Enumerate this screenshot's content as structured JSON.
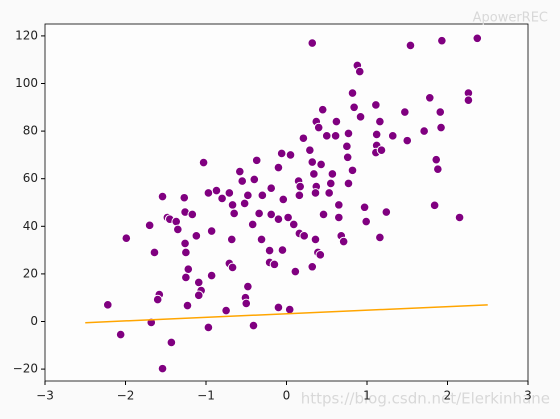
{
  "chart_data": {
    "type": "scatter",
    "color": "#800080",
    "x": [
      0.32,
      1.54,
      1.93,
      2.37,
      0.88,
      0.91,
      2.26,
      2.26,
      1.78,
      0.84,
      0.45,
      0.82,
      1.11,
      1.47,
      1.91,
      1.92,
      0.37,
      0.4,
      0.62,
      1.16,
      1.12,
      0.92,
      0.77,
      1.71,
      1.5,
      1.32,
      0.61,
      0.21,
      0.29,
      0.05,
      0.5,
      -0.06,
      -0.37,
      -1.03,
      0.75,
      1.12,
      1.11,
      1.18,
      1.86,
      1.88,
      0.76,
      0.32,
      0.43,
      -0.1,
      -0.58,
      0.82,
      0.77,
      0.34,
      0.15,
      -0.55,
      -0.87,
      -0.97,
      -1.27,
      -1.54,
      -0.4,
      -0.19,
      0.17,
      0.37,
      0.36,
      0.53,
      -0.71,
      -0.8,
      -0.67,
      -0.52,
      -0.48,
      -0.3,
      0.16,
      -0.04,
      -1.26,
      -1.48,
      -1.17,
      -0.65,
      -0.34,
      -0.19,
      0.02,
      -0.1,
      0.09,
      0.46,
      0.65,
      0.65,
      0.97,
      0.99,
      1.24,
      1.84,
      2.15,
      -1.45,
      -1.37,
      -1.35,
      -1.7,
      -0.93,
      -1.12,
      -0.42,
      -0.31,
      0.16,
      0.22,
      0.36,
      0.68,
      0.71,
      1.16,
      -1.99,
      -1.64,
      -1.26,
      -1.25,
      -0.68,
      -0.21,
      -0.05,
      0.39,
      0.42,
      -0.71,
      -0.67,
      -0.21,
      -0.15,
      0.32,
      -1.22,
      -1.09,
      -0.93,
      -1.25,
      0.11,
      -0.48,
      -0.51,
      -0.5,
      -1.06,
      -1.09,
      -1.58,
      -1.6,
      -1.23,
      -2.22,
      -0.75,
      -0.1,
      0.04,
      -1.68,
      -0.97,
      -0.41,
      -2.06,
      -1.43,
      -1.54,
      0.55,
      0.57
    ],
    "values": [
      117,
      116,
      118,
      119,
      107.6,
      105,
      96,
      93,
      94,
      90,
      89,
      96,
      91,
      88,
      88,
      81.5,
      84,
      81.5,
      84,
      84,
      78.6,
      86,
      79,
      80,
      76,
      78,
      78,
      77,
      72,
      70,
      78,
      70.6,
      67.7,
      66.8,
      73.6,
      74,
      71,
      72,
      68,
      64,
      69,
      67,
      66,
      64.7,
      63,
      63.5,
      58,
      62,
      59,
      59,
      55,
      54,
      52,
      52.5,
      59.7,
      56,
      56.7,
      56.7,
      54,
      54,
      54,
      51.7,
      49,
      49.6,
      53,
      53,
      53,
      51.3,
      46,
      43.7,
      45,
      45.4,
      45.4,
      45,
      43.7,
      43,
      40.8,
      45,
      49,
      43.7,
      48,
      42,
      46,
      48.8,
      43.7,
      43,
      42,
      38.7,
      40.4,
      38,
      36,
      40.8,
      34.5,
      37,
      36,
      34.5,
      36,
      33.6,
      35.3,
      35,
      29,
      32.8,
      29,
      34.5,
      29.8,
      30,
      29,
      28,
      24.4,
      22.7,
      24.8,
      24,
      23,
      22,
      16.4,
      19.3,
      18.5,
      21,
      14.7,
      10,
      7.6,
      13,
      11,
      11.3,
      9.2,
      6.7,
      7,
      4.6,
      5.9,
      5,
      -0.4,
      -2.5,
      -1.7,
      -5.5,
      -8.8,
      -19.8,
      58,
      62
    ],
    "fit_line": {
      "x": [
        -2.5,
        2.5
      ],
      "values": [
        -0.5,
        7
      ],
      "color": "orange"
    },
    "xlim": [
      -3,
      3
    ],
    "ylim": [
      -25,
      125
    ],
    "xticks": [
      {
        "value": -3,
        "label": "−3"
      },
      {
        "value": -2,
        "label": "−2"
      },
      {
        "value": -1,
        "label": "−1"
      },
      0,
      1,
      2,
      3
    ],
    "yticks": [
      {
        "value": -20,
        "label": "−20"
      },
      0,
      20,
      40,
      60,
      80,
      100,
      120
    ],
    "watermarks": [
      "ApowerREC",
      "https://blog.csdn.net/Elerkinhane"
    ]
  }
}
